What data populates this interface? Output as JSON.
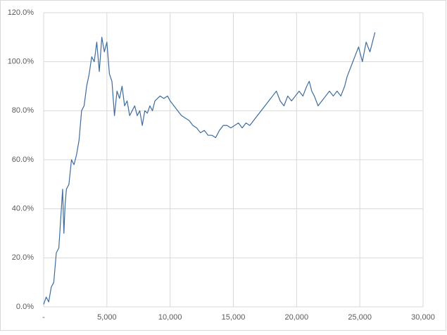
{
  "chart_data": {
    "type": "line",
    "x": [
      0,
      200,
      400,
      600,
      800,
      1000,
      1200,
      1400,
      1500,
      1600,
      1700,
      1800,
      2000,
      2200,
      2400,
      2600,
      2800,
      3000,
      3200,
      3400,
      3600,
      3800,
      4000,
      4200,
      4400,
      4600,
      4800,
      5000,
      5200,
      5400,
      5600,
      5800,
      6000,
      6200,
      6400,
      6600,
      6800,
      7000,
      7200,
      7400,
      7600,
      7800,
      8000,
      8200,
      8400,
      8600,
      8800,
      9000,
      9200,
      9500,
      9800,
      10000,
      10300,
      10600,
      10900,
      11200,
      11500,
      11800,
      12100,
      12400,
      12700,
      13000,
      13300,
      13600,
      13900,
      14200,
      14500,
      14800,
      15100,
      15400,
      15700,
      16000,
      16300,
      16600,
      16900,
      17200,
      17500,
      17800,
      18100,
      18400,
      18700,
      19000,
      19300,
      19600,
      19900,
      20200,
      20500,
      20800,
      21000,
      21200,
      21400,
      21700,
      22000,
      22300,
      22600,
      22900,
      23200,
      23500,
      23800,
      24000,
      24300,
      24600,
      24900,
      25200,
      25500,
      25800,
      26100,
      26200
    ],
    "values": [
      1,
      4,
      2,
      8,
      10,
      22,
      24,
      40,
      48,
      30,
      42,
      48,
      50,
      60,
      58,
      62,
      68,
      80,
      82,
      90,
      95,
      102,
      100,
      108,
      96,
      110,
      104,
      108,
      95,
      92,
      78,
      88,
      85,
      90,
      82,
      84,
      78,
      80,
      82,
      78,
      80,
      74,
      80,
      79,
      82,
      80,
      84,
      85,
      86,
      85,
      86,
      84,
      82,
      80,
      78,
      77,
      76,
      74,
      73,
      71,
      72,
      70,
      70,
      69,
      72,
      74,
      74,
      73,
      74,
      75,
      73,
      75,
      74,
      76,
      78,
      80,
      82,
      84,
      86,
      88,
      84,
      82,
      86,
      84,
      86,
      88,
      86,
      90,
      92,
      88,
      86,
      82,
      84,
      86,
      88,
      86,
      88,
      86,
      90,
      94,
      98,
      102,
      106,
      100,
      108,
      104,
      110,
      112
    ],
    "color": "#3d6c9e",
    "xlim": [
      0,
      30000
    ],
    "xticks": [
      {
        "value": 0,
        "label": "-"
      },
      {
        "value": 5000,
        "label": "5,000"
      },
      {
        "value": 10000,
        "label": "10,000"
      },
      {
        "value": 15000,
        "label": "15,000"
      },
      {
        "value": 20000,
        "label": "20,000"
      },
      {
        "value": 25000,
        "label": "25,000"
      },
      {
        "value": 30000,
        "label": "30,000"
      }
    ],
    "ylim": [
      0,
      120
    ],
    "yticks": [
      {
        "value": 0,
        "label": "0.0%"
      },
      {
        "value": 20,
        "label": "20.0%"
      },
      {
        "value": 40,
        "label": "40.0%"
      },
      {
        "value": 60,
        "label": "60.0%"
      },
      {
        "value": 80,
        "label": "80.0%"
      },
      {
        "value": 100,
        "label": "100.0%"
      },
      {
        "value": 120,
        "label": "120.0%"
      }
    ],
    "grid": true
  }
}
